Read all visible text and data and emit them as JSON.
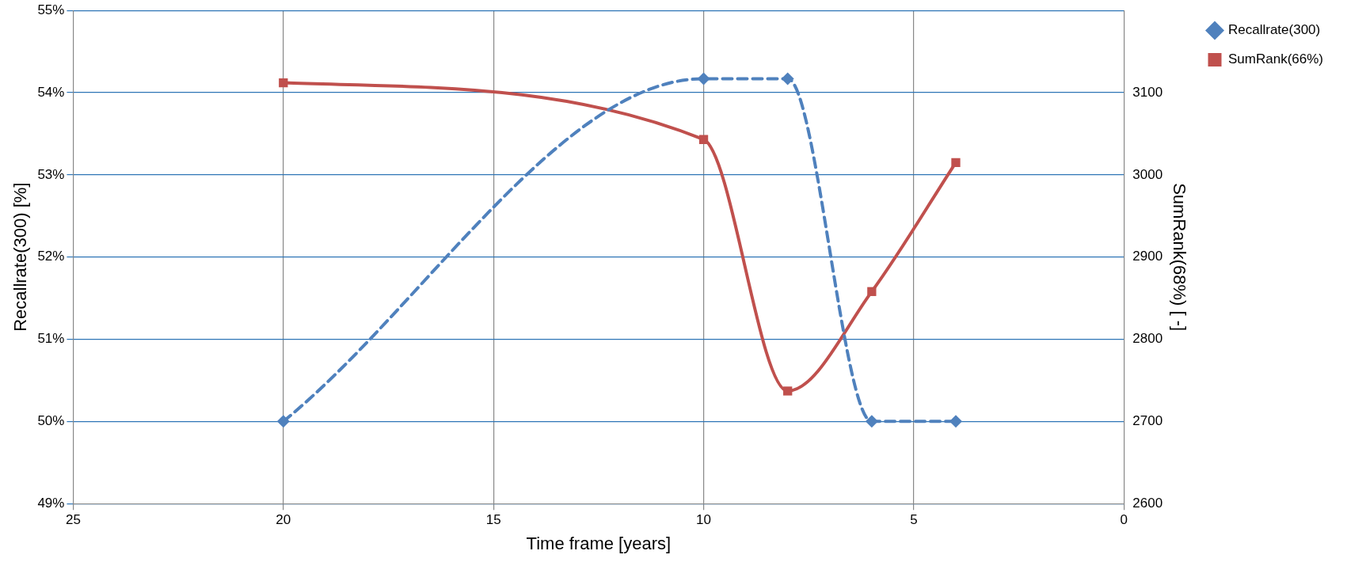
{
  "chart_data": {
    "type": "line",
    "xlabel": "Time frame [years]",
    "ylabel": "Recallrate(300) [%]",
    "y2label": "SumRank(68%) [ -]",
    "xlim": [
      25,
      0
    ],
    "xticks": [
      25,
      20,
      15,
      10,
      5,
      0
    ],
    "ylim": [
      49,
      55
    ],
    "yticks": [
      {
        "value": 49,
        "label": "49%"
      },
      {
        "value": 50,
        "label": "50%"
      },
      {
        "value": 51,
        "label": "51%"
      },
      {
        "value": 52,
        "label": "52%"
      },
      {
        "value": 53,
        "label": "53%"
      },
      {
        "value": 54,
        "label": "54%"
      },
      {
        "value": 55,
        "label": "55%"
      }
    ],
    "y2lim": [
      2600,
      3200
    ],
    "y2ticks": [
      2600,
      2700,
      2800,
      2900,
      3000,
      3100
    ],
    "grid": true,
    "legend": "top right",
    "series": [
      {
        "name": "Recallrate(300)",
        "color": "#4f81bd",
        "x": [
          20,
          10,
          8,
          6,
          4
        ],
        "values": [
          50,
          54.17,
          54.17,
          50,
          50
        ],
        "marker": "diamond",
        "line_style": "dashed"
      },
      {
        "name": "SumRank(66%)",
        "color": "#c0504d",
        "x": [
          20,
          10,
          8,
          6,
          4
        ],
        "values": [
          3112,
          3043,
          2737,
          2858,
          3015
        ],
        "marker": "square",
        "line_style": "solid",
        "axis": "y2"
      }
    ]
  }
}
